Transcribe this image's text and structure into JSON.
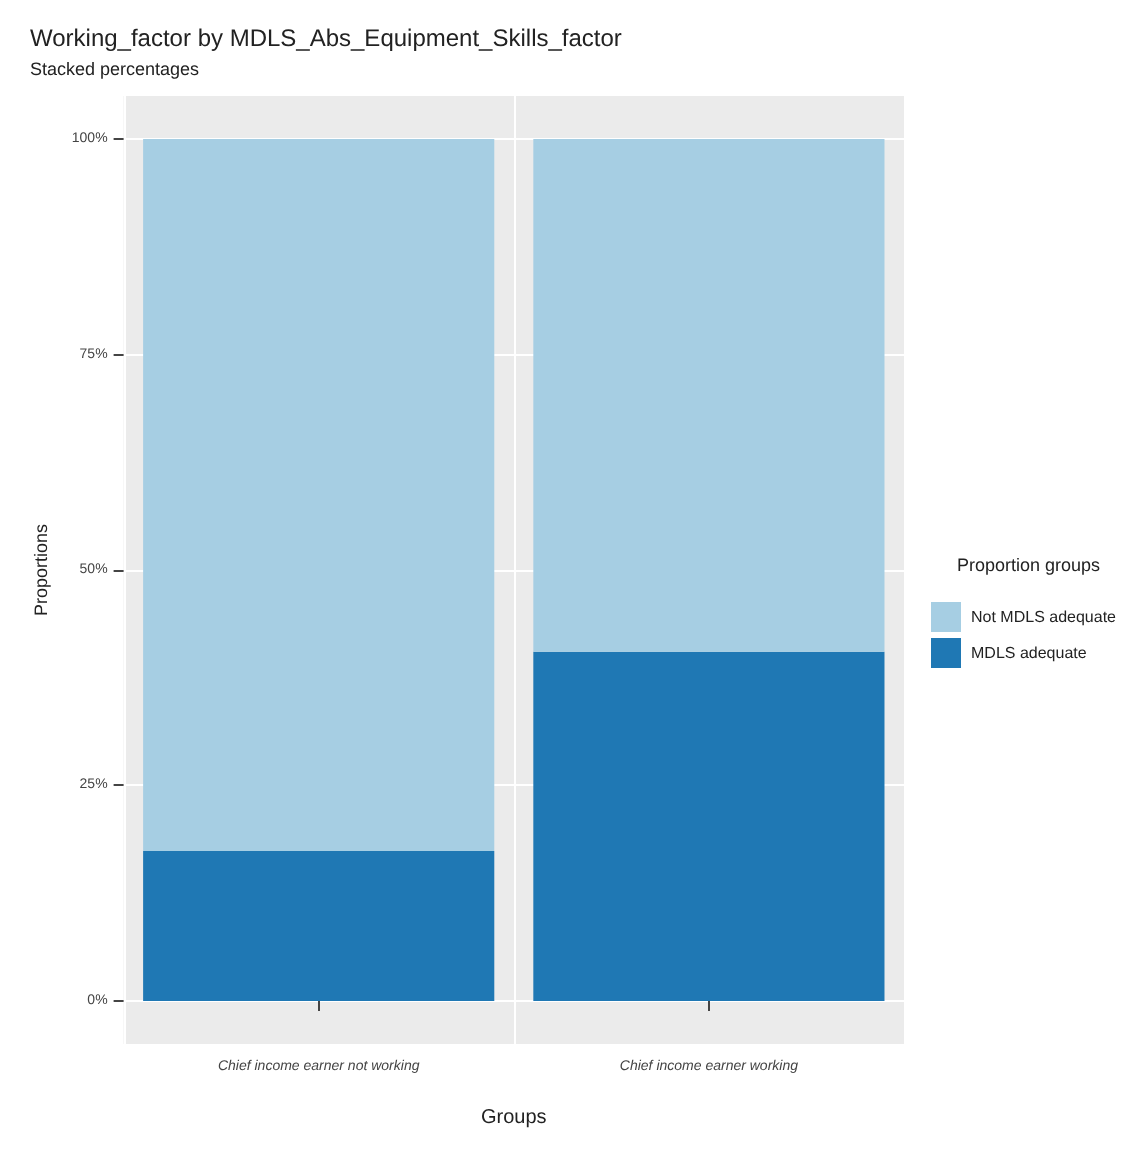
{
  "chart_data": {
    "type": "bar",
    "title": "Working_factor by MDLS_Abs_Equipment_Skills_factor",
    "subtitle": "Stacked percentages",
    "xlabel": "Groups",
    "ylabel": "Proportions",
    "legend_title": "Proportion groups",
    "categories": [
      "Chief income earner not working",
      "Chief income earner working"
    ],
    "series": [
      {
        "name": "MDLS adequate",
        "color": "#1f78b4",
        "values": [
          17.4,
          40.5
        ]
      },
      {
        "name": "Not MDLS adequate",
        "color": "#a6cee3",
        "values": [
          82.6,
          59.5
        ]
      }
    ],
    "stacked": true,
    "ylim": [
      -5,
      105
    ],
    "yticks": [
      {
        "value": 0,
        "label": "0%"
      },
      {
        "value": 25,
        "label": "25%"
      },
      {
        "value": 50,
        "label": "50%"
      },
      {
        "value": 75,
        "label": "75%"
      },
      {
        "value": 100,
        "label": "100%"
      }
    ],
    "grid": true,
    "legend": "right"
  }
}
